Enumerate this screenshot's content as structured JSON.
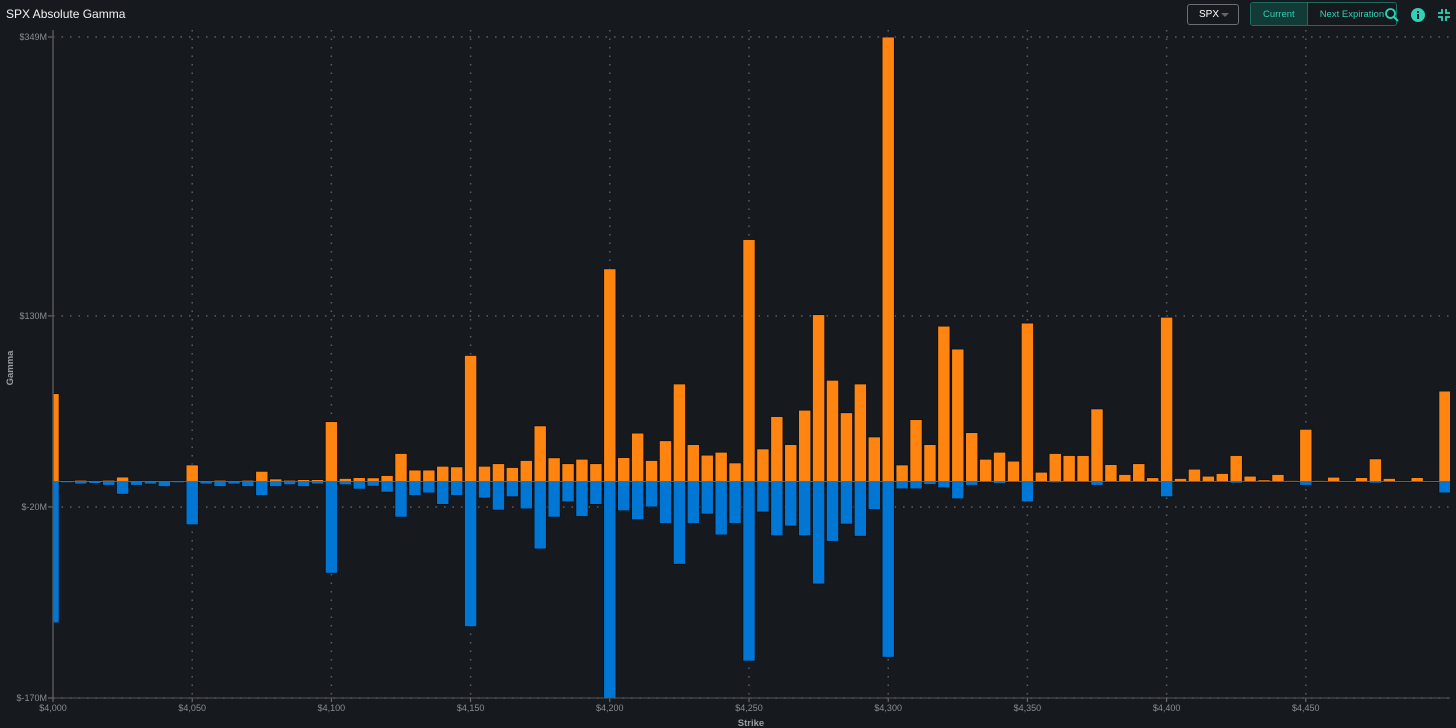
{
  "header": {
    "title": "SPX Absolute Gamma",
    "symbol": "SPX",
    "toggle": [
      "Current",
      "Next Expiration"
    ],
    "active_toggle": "Current",
    "icons": [
      "search-icon",
      "info-icon",
      "collapse-icon"
    ]
  },
  "colors": {
    "positive": "#ff8410",
    "negative": "#0077d4",
    "accent": "#2fd1b7",
    "background": "#16191e"
  },
  "chart_data": {
    "type": "bar",
    "title": "SPX Absolute Gamma",
    "xlabel": "Strike",
    "ylabel": "Gamma",
    "ylim": [
      -170,
      349
    ],
    "xlim": [
      4000,
      4500
    ],
    "y_ticks": [
      349,
      130,
      -20,
      -170
    ],
    "y_tick_labels": [
      "$349M",
      "$130M",
      "$-20M",
      "$-170M"
    ],
    "x_ticks": [
      4000,
      4050,
      4100,
      4150,
      4200,
      4250,
      4300,
      4350,
      4400,
      4450
    ],
    "x_tick_labels": [
      "$4,000",
      "$4,050",
      "$4,100",
      "$4,150",
      "$4,200",
      "$4,250",
      "$4,300",
      "$4,350",
      "$4,400",
      "$4,450"
    ],
    "grid": true,
    "strike_start": 4000,
    "strike_step": 5,
    "series": [
      {
        "name": "Call Gamma",
        "color": "#ff8410",
        "values": [
          69,
          0.5,
          1,
          0.3,
          1,
          3.5,
          0.3,
          0.3,
          0.5,
          0.3,
          13,
          0.3,
          1,
          0.3,
          1,
          8,
          2,
          1,
          1.5,
          1.5,
          47,
          2.4,
          3.1,
          2.9,
          4.7,
          22,
          9,
          9,
          12,
          11.5,
          99,
          12,
          14,
          11,
          16.5,
          43.7,
          18.6,
          14,
          17.5,
          14,
          167,
          18.8,
          38,
          16.5,
          32,
          76.6,
          29,
          20.7,
          23,
          14.6,
          190,
          25.6,
          51,
          29,
          56,
          131,
          79.5,
          54,
          76.6,
          35,
          349,
          13,
          48.6,
          29,
          122,
          104,
          38.4,
          17.5,
          23,
          16,
          124.4,
          7.3,
          22,
          20.4,
          20.4,
          57,
          13.3,
          5.5,
          14,
          3,
          129,
          2.4,
          9.7,
          4.2,
          6.3,
          20.4,
          4.2,
          1.3,
          5.5,
          0.8,
          41,
          0.8,
          3.4,
          0.5,
          3.1,
          17.8,
          2.4,
          0.5,
          3.1,
          0.5,
          71
        ]
      },
      {
        "name": "Put Gamma",
        "color": "#0077d4",
        "values": [
          -111,
          -1,
          -2,
          -1.5,
          -3,
          -10,
          -3,
          -2,
          -4,
          -1,
          -34,
          -2,
          -4,
          -2,
          -4,
          -11,
          -4,
          -2.5,
          -4,
          -2,
          -72,
          -2.6,
          -6,
          -3.7,
          -8.4,
          -28,
          -11,
          -9,
          -18,
          -11,
          -114,
          -13,
          -22.5,
          -12,
          -21.5,
          -53,
          -28,
          -16,
          -27.5,
          -18,
          -170,
          -23,
          -30,
          -20,
          -33,
          -65,
          -33,
          -25.6,
          -42,
          -33,
          -141,
          -24,
          -42.6,
          -35,
          -42.6,
          -80.5,
          -47,
          -33.5,
          -43,
          -22,
          -138,
          -5.8,
          -5.8,
          -2.4,
          -5,
          -13.6,
          -3,
          -0.5,
          -1.6,
          0,
          -16,
          0,
          -1,
          0,
          0,
          -3,
          0,
          0,
          0,
          0,
          -12,
          0,
          0,
          0,
          0,
          -1.3,
          0,
          0,
          0,
          0,
          -3,
          0,
          0,
          0,
          0,
          -1.3,
          0,
          0,
          0,
          0,
          -9
        ]
      }
    ]
  }
}
